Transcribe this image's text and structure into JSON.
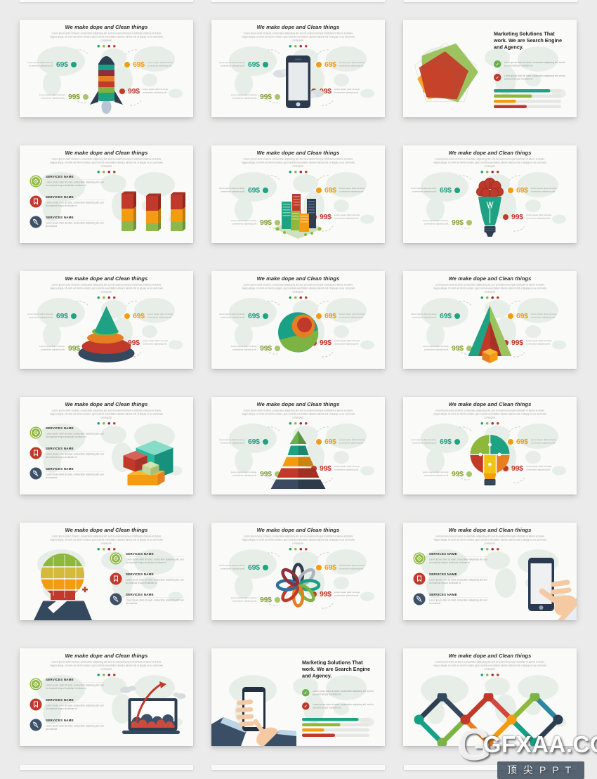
{
  "page": {
    "background": "#ebebeb"
  },
  "watermark": {
    "logo_letter": "G",
    "brand": "GFXAA.COM",
    "subtext": "顶尖PPT"
  },
  "shared": {
    "title": "We make dope and Clean things",
    "subtitle": "Lorem ipsum dolor sit amet, consectetur adipiscing elit, sed do eiusmod tempor incididunt ut labore et dolore magna aliqua. Ut enim ad minim veniam, quis nostrud exercitation ullamco laboris nisi ut aliquip ex ea commodo consequat.",
    "marketing_title": "Marketing Solutions That work. We are Search Engine and Agency.",
    "dot_colors": [
      "#1f9d6e",
      "#8db83a",
      "#8c2b3a",
      "#c0392b"
    ],
    "price_items": [
      {
        "value": "69$",
        "color": "#1fa184",
        "dot_color": "#1fa184",
        "note": "Lorem ipsum dolor sit amet, consectetur adipiscing elit."
      },
      {
        "value": "69$",
        "color": "#f39c12",
        "dot_color": "#f39c12",
        "note": "Lorem ipsum dolor sit amet, consectetur adipiscing elit."
      },
      {
        "value": "99$",
        "color": "#84a03c",
        "dot_color": "#a8c66c",
        "note": "Lorem ipsum dolor sit amet, consectetur adipiscing elit."
      },
      {
        "value": "99$",
        "color": "#c0392b",
        "dot_color": "#c0392b",
        "note": "Lorem ipsum dolor sit amet, consectetur adipiscing elit."
      }
    ],
    "services": [
      {
        "name": "SERVICES NAME",
        "icon": "target-icon",
        "color": "#8db83a",
        "desc": "Lorem ipsum dolor sit amet, consectetur adipiscing elit, sed do eiusmod tempor incididunt ut labore et"
      },
      {
        "name": "SERVICES NAME",
        "icon": "award-icon",
        "color": "#c0392b",
        "desc": "Lorem ipsum dolor sit amet, consectetur adipiscing elit, sed do eiusmod tempor incididunt ut"
      },
      {
        "name": "SERVICES NAME",
        "icon": "rocket-icon",
        "color": "#3d5168",
        "desc": "Lorem ipsum dolor sit amet, consectetur adipiscing elit, sed do eiusmod"
      }
    ],
    "marketing_bullets": [
      {
        "color": "#6ab04c",
        "icon": "check-icon",
        "text": "Lorem ipsum dolor sit amet, consectetur adipiscing elit, sed do eiusmod tempor incididunt ut"
      },
      {
        "color": "#c0392b",
        "icon": "check-icon",
        "text": "Lorem ipsum dolor sit amet, consectetur adipiscing elit, sed do eiusmod tempor incididunt ut"
      }
    ],
    "progress_bars": [
      {
        "color": "#1fa184",
        "percent": 84
      },
      {
        "color": "#8db83a",
        "percent": 57
      },
      {
        "color": "#f39c12",
        "percent": 33
      },
      {
        "color": "#c0392b",
        "percent": 49
      }
    ]
  },
  "slides": [
    {
      "graphic": "rocket",
      "layout": "prices"
    },
    {
      "graphic": "smartphone",
      "layout": "prices"
    },
    {
      "graphic": "radar",
      "layout": "marketing"
    },
    {
      "graphic": "bars3d",
      "layout": "services"
    },
    {
      "graphic": "city",
      "layout": "prices"
    },
    {
      "graphic": "brain-bulb",
      "layout": "prices"
    },
    {
      "graphic": "cone",
      "layout": "prices"
    },
    {
      "graphic": "sphere",
      "layout": "prices"
    },
    {
      "graphic": "pyramid-cutaway",
      "layout": "prices"
    },
    {
      "graphic": "cubes",
      "layout": "services"
    },
    {
      "graphic": "pyramid-layers",
      "layout": "prices"
    },
    {
      "graphic": "bulb-puzzle",
      "layout": "prices"
    },
    {
      "graphic": "head-circuit",
      "layout": "services-right"
    },
    {
      "graphic": "loops-flower",
      "layout": "prices"
    },
    {
      "graphic": "phone-hand",
      "layout": "services"
    },
    {
      "graphic": "laptop-chart",
      "layout": "services"
    },
    {
      "graphic": "hands-phone",
      "layout": "marketing"
    },
    {
      "graphic": "diamond-chain",
      "layout": "plain"
    }
  ]
}
